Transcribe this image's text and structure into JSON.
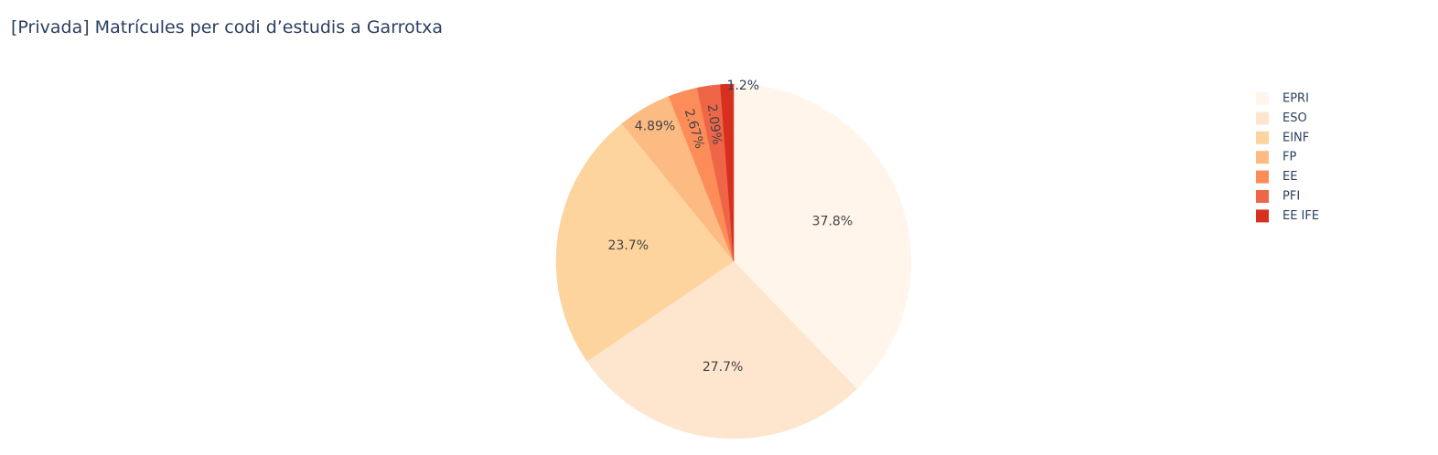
{
  "chart_data": {
    "type": "pie",
    "title": "[Privada] Matrícules per codi d’estudis a Garrotxa",
    "direction": "clockwise",
    "start": "top",
    "legend_position": "top-right",
    "slices": [
      {
        "label": "EPRI",
        "value": 37.8,
        "display": "37.8%",
        "color": "#fff5eb",
        "text_position": "inside"
      },
      {
        "label": "ESO",
        "value": 27.7,
        "display": "27.7%",
        "color": "#fee6ce",
        "text_position": "inside"
      },
      {
        "label": "EINF",
        "value": 23.7,
        "display": "23.7%",
        "color": "#fdd49e",
        "text_position": "inside"
      },
      {
        "label": "FP",
        "value": 4.89,
        "display": "4.89%",
        "color": "#fdbb84",
        "text_position": "inside"
      },
      {
        "label": "EE",
        "value": 2.67,
        "display": "2.67%",
        "color": "#fc8d59",
        "text_position": "inside-radial"
      },
      {
        "label": "PFI",
        "value": 2.09,
        "display": "2.09%",
        "color": "#ef6548",
        "text_position": "inside-radial"
      },
      {
        "label": "EE IFE",
        "value": 1.2,
        "display": "1.2%",
        "color": "#d7301f",
        "text_position": "outside"
      }
    ]
  }
}
